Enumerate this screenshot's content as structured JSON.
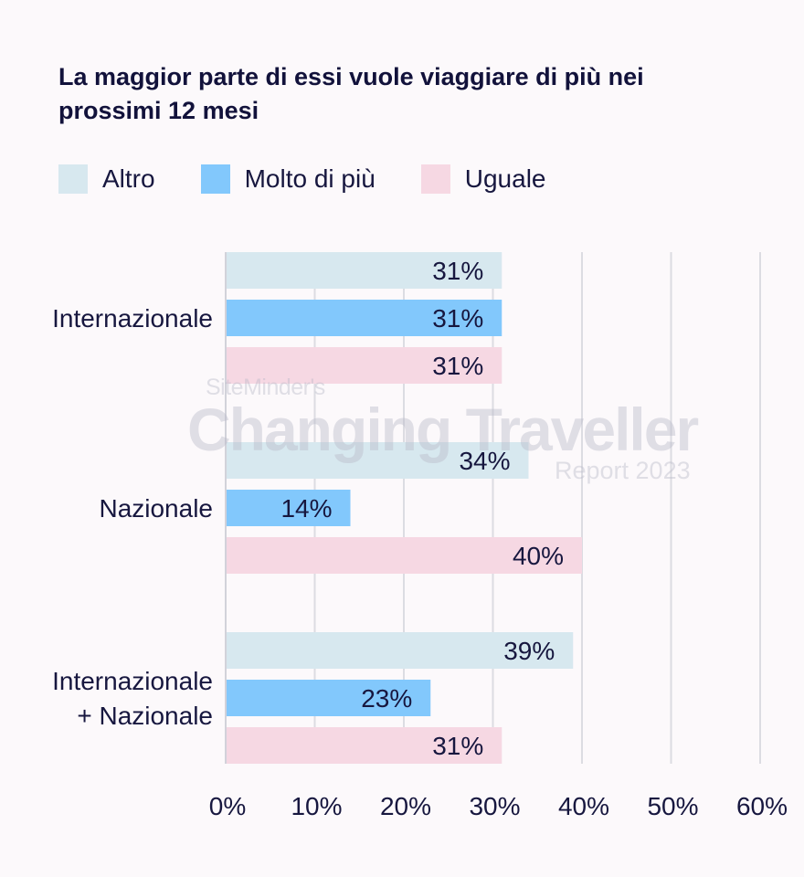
{
  "title": "La maggior parte di essi vuole viaggiare di più nei prossimi 12 mesi",
  "watermark": {
    "line1": "SiteMinder's",
    "line2": "Changing Traveller",
    "line3": "Report 2023"
  },
  "chart_data": {
    "type": "bar",
    "orientation": "horizontal",
    "categories": [
      [
        "Internazionale"
      ],
      [
        "Nazionale"
      ],
      [
        "Internazionale",
        "+ Nazionale"
      ]
    ],
    "series": [
      {
        "name": "Altro",
        "color": "#d7e8ef",
        "values": [
          31,
          34,
          39
        ],
        "labels": [
          "31%",
          "34%",
          "39%"
        ]
      },
      {
        "name": "Molto di più",
        "color": "#82c8fc",
        "values": [
          31,
          14,
          23
        ],
        "labels": [
          "31%",
          "14%",
          "23%"
        ]
      },
      {
        "name": "Uguale",
        "color": "#f6d8e3",
        "values": [
          31,
          40,
          31
        ],
        "labels": [
          "31%",
          "40%",
          "31%"
        ]
      }
    ],
    "xlim": [
      0,
      60
    ],
    "xticks": [
      0,
      10,
      20,
      30,
      40,
      50,
      60
    ],
    "xtick_labels": [
      "0%",
      "10%",
      "20%",
      "30%",
      "40%",
      "50%",
      "60%"
    ],
    "grid": true,
    "legend_position": "top-left"
  }
}
